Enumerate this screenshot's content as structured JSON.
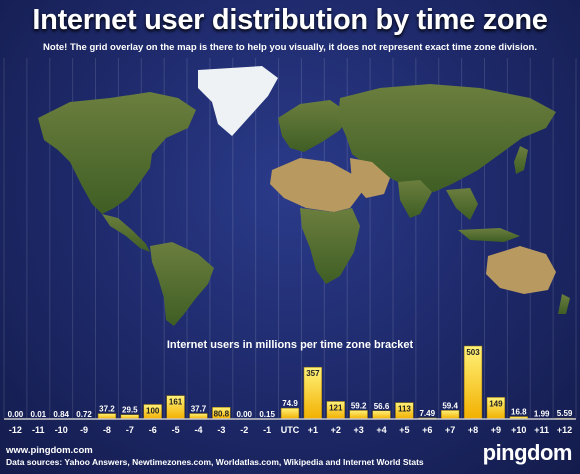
{
  "header": {
    "title": "Internet user distribution by time zone",
    "note": "Note! The grid overlay on the map is there to help you visually, it does not represent exact time zone division."
  },
  "footer": {
    "url": "www.pingdom.com",
    "sources": "Data sources: Yahoo Answers, Newtimezones.com, Worldatlas.com, Wikipedia and Internet World Stats",
    "brand": "pingdom"
  },
  "colors": {
    "bar_top": "#fff27a",
    "bar_bottom": "#f2b000",
    "ocean": "#1d2868",
    "land": "#4f6e2c",
    "desert": "#b89a60",
    "ice": "#eef2f5"
  },
  "chart_data": {
    "type": "bar",
    "title": "Internet users in millions per time zone bracket",
    "categories": [
      "-12",
      "-11",
      "-10",
      "-9",
      "-8",
      "-7",
      "-6",
      "-5",
      "-4",
      "-3",
      "-2",
      "-1",
      "UTC",
      "+1",
      "+2",
      "+3",
      "+4",
      "+5",
      "+6",
      "+7",
      "+8",
      "+9",
      "+10",
      "+11",
      "+12"
    ],
    "values": [
      0.0,
      0.01,
      0.84,
      0.72,
      37.2,
      29.5,
      100,
      161,
      37.7,
      80.8,
      0.0,
      0.15,
      74.9,
      357,
      121,
      59.2,
      56.6,
      113,
      7.49,
      59.4,
      503,
      149,
      16.8,
      1.99,
      5.59
    ],
    "value_labels": [
      "0.00",
      "0.01",
      "0.84",
      "0.72",
      "37.2",
      "29.5",
      "100",
      "161",
      "37.7",
      "80.8",
      "0.00",
      "0.15",
      "74.9",
      "357",
      "121",
      "59.2",
      "56.6",
      "113",
      "7.49",
      "59.4",
      "503",
      "149",
      "16.8",
      "1.99",
      "5.59"
    ],
    "ylim": [
      0,
      503
    ],
    "grid": false,
    "legend": "none"
  }
}
